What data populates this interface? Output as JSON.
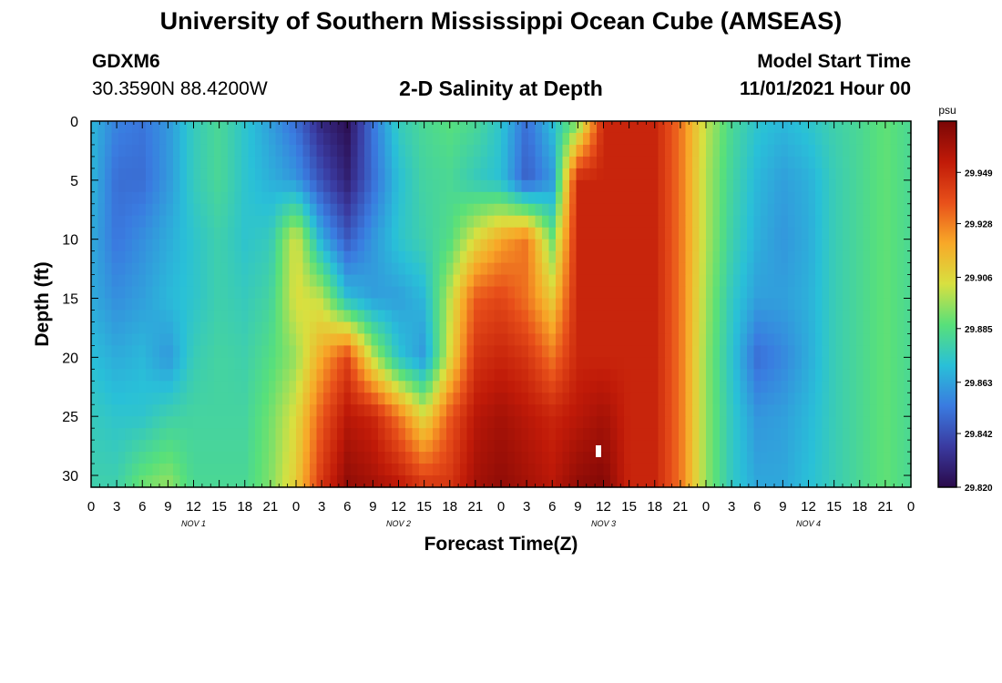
{
  "header": {
    "title": "University of Southern Mississippi Ocean Cube (AMSEAS)",
    "station": "GDXM6",
    "coordinates": "30.3590N  88.4200W",
    "subtitle": "2-D Salinity at Depth",
    "model_start_label": "Model Start Time",
    "model_start_value": "11/01/2021 Hour 00"
  },
  "footer": {
    "title": "University of Southern Mississippi Ocean Cube (AMSEAS)"
  },
  "chart_data": {
    "type": "heatmap",
    "title": "2-D Salinity at Depth",
    "xlabel": "Forecast Time(Z)",
    "ylabel": "Depth (ft)",
    "x_range": [
      0,
      96
    ],
    "y_range": [
      0,
      31
    ],
    "x_tick_labels": [
      "0",
      "3",
      "6",
      "9",
      "12",
      "15",
      "18",
      "21",
      "0",
      "3",
      "6",
      "9",
      "12",
      "15",
      "18",
      "21",
      "0",
      "3",
      "6",
      "9",
      "12",
      "15",
      "18",
      "21",
      "0",
      "3",
      "6",
      "9",
      "12",
      "15",
      "18",
      "21",
      "0"
    ],
    "y_ticks": [
      0,
      5,
      10,
      15,
      20,
      25,
      30
    ],
    "day_labels": [
      "NOV 1",
      "NOV 2",
      "NOV 3",
      "NOV 4"
    ],
    "colorbar": {
      "unit": "psu",
      "min": 29.82,
      "max": 29.97,
      "tick_values": [
        29.82,
        29.842,
        29.863,
        29.885,
        29.906,
        29.928,
        29.949
      ],
      "tick_labels": [
        "29.820",
        "29.842",
        "29.863",
        "29.885",
        "29.906",
        "29.928",
        "29.949"
      ],
      "colors": [
        "#2a0a4a",
        "#3a3aa0",
        "#3a7be0",
        "#29c0d8",
        "#58e07a",
        "#d8e040",
        "#f8a828",
        "#e8501a",
        "#c01a08",
        "#7a0606"
      ]
    },
    "depths": [
      0,
      5,
      10,
      15,
      20,
      25,
      31
    ],
    "times": [
      0,
      3,
      6,
      9,
      12,
      15,
      18,
      21,
      24,
      27,
      30,
      33,
      36,
      39,
      42,
      45,
      48,
      51,
      54,
      57,
      60,
      63,
      66,
      69,
      72,
      75,
      78,
      81,
      84,
      87,
      90,
      93,
      96
    ],
    "values": [
      [
        29.868,
        29.855,
        29.852,
        29.86,
        29.875,
        29.882,
        29.872,
        29.862,
        29.85,
        29.83,
        29.822,
        29.852,
        29.875,
        29.882,
        29.886,
        29.882,
        29.872,
        29.85,
        29.87,
        29.89,
        29.95,
        29.95,
        29.95,
        29.93,
        29.9,
        29.882,
        29.872,
        29.868,
        29.872,
        29.878,
        29.882,
        29.888,
        29.882
      ],
      [
        29.868,
        29.85,
        29.85,
        29.86,
        29.875,
        29.882,
        29.872,
        29.866,
        29.86,
        29.842,
        29.828,
        29.85,
        29.87,
        29.88,
        29.882,
        29.875,
        29.87,
        29.846,
        29.86,
        29.95,
        29.95,
        29.95,
        29.95,
        29.93,
        29.898,
        29.88,
        29.868,
        29.862,
        29.866,
        29.876,
        29.882,
        29.888,
        29.882
      ],
      [
        29.865,
        29.852,
        29.858,
        29.865,
        29.872,
        29.878,
        29.872,
        29.875,
        29.905,
        29.865,
        29.845,
        29.86,
        29.872,
        29.878,
        29.885,
        29.905,
        29.92,
        29.93,
        29.89,
        29.95,
        29.95,
        29.95,
        29.95,
        29.93,
        29.898,
        29.878,
        29.866,
        29.86,
        29.865,
        29.876,
        29.882,
        29.888,
        29.882
      ],
      [
        29.865,
        29.858,
        29.862,
        29.868,
        29.872,
        29.878,
        29.875,
        29.88,
        29.905,
        29.9,
        29.87,
        29.862,
        29.862,
        29.868,
        29.9,
        29.935,
        29.94,
        29.93,
        29.91,
        29.95,
        29.95,
        29.95,
        29.95,
        29.93,
        29.896,
        29.874,
        29.862,
        29.862,
        29.866,
        29.876,
        29.882,
        29.888,
        29.882
      ],
      [
        29.87,
        29.865,
        29.868,
        29.86,
        29.876,
        29.88,
        29.878,
        29.885,
        29.895,
        29.92,
        29.94,
        29.9,
        29.872,
        29.86,
        29.905,
        29.945,
        29.95,
        29.945,
        29.93,
        29.95,
        29.95,
        29.95,
        29.95,
        29.93,
        29.894,
        29.872,
        29.85,
        29.856,
        29.865,
        29.876,
        29.882,
        29.888,
        29.882
      ],
      [
        29.875,
        29.872,
        29.872,
        29.878,
        29.88,
        29.88,
        29.88,
        29.89,
        29.905,
        29.935,
        29.955,
        29.95,
        29.93,
        29.905,
        29.935,
        29.955,
        29.96,
        29.955,
        29.95,
        29.955,
        29.96,
        29.95,
        29.95,
        29.93,
        29.894,
        29.874,
        29.86,
        29.862,
        29.868,
        29.876,
        29.882,
        29.888,
        29.882
      ],
      [
        29.878,
        29.878,
        29.89,
        29.895,
        29.882,
        29.882,
        29.882,
        29.892,
        29.91,
        29.945,
        29.965,
        29.96,
        29.955,
        29.945,
        29.945,
        29.96,
        29.965,
        29.96,
        29.955,
        29.965,
        29.968,
        29.95,
        29.95,
        29.93,
        29.894,
        29.874,
        29.864,
        29.864,
        29.87,
        29.876,
        29.882,
        29.888,
        29.882
      ]
    ]
  }
}
